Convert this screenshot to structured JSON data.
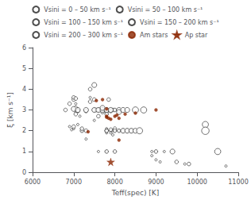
{
  "chart_data": {
    "type": "scatter",
    "xlabel": "Teff(spec) [K]",
    "ylabel": "ξ [km s⁻¹]",
    "xlim": [
      6000,
      11000
    ],
    "ylim": [
      0.0,
      6.0
    ],
    "xticks": [
      6000,
      7000,
      8000,
      9000,
      10000,
      11000
    ],
    "yticks": [
      0,
      1,
      2,
      3,
      4,
      5,
      6
    ],
    "grid": false,
    "legend": "top",
    "series": [
      {
        "name": "Vsini = 0 – 50 km s⁻¹",
        "marker": "open circle",
        "color": "#222222",
        "x": [
          6900,
          6950,
          7050,
          7050,
          7150,
          7000,
          7100,
          7200,
          7300,
          7400,
          7500,
          7600,
          7700,
          7800,
          7800,
          7800,
          7800,
          7800,
          7900,
          7900,
          7900,
          7950,
          7950,
          8000,
          8000,
          8000,
          8000,
          8100,
          8100,
          8900,
          8900,
          9000,
          9000,
          9100,
          9200,
          9700,
          10700
        ],
        "values": [
          2.2,
          2.05,
          2.9,
          3.3,
          2.7,
          2.1,
          2.3,
          2.0,
          1.6,
          3.6,
          2.5,
          1.0,
          3.0,
          2.0,
          2.0,
          1.9,
          2.1,
          1.0,
          2.0,
          2.0,
          1.9,
          2.0,
          1.8,
          3.0,
          2.0,
          2.0,
          1.0,
          2.0,
          2.0,
          1.0,
          0.8,
          1.0,
          0.6,
          0.5,
          1.0,
          0.4,
          0.3
        ]
      },
      {
        "name": "Vsini = 50 – 100 km s⁻¹",
        "marker": "open circle",
        "color": "#222222",
        "x": [
          6800,
          6900,
          7000,
          7000,
          7050,
          7100,
          7100,
          7050,
          7050,
          7000,
          7200,
          7200,
          7300,
          7300,
          7400,
          7400,
          7500,
          7500,
          7550,
          7600,
          7600,
          7700,
          7700,
          7800,
          7800,
          7800,
          7800,
          7800,
          7800,
          7850,
          7900,
          7900,
          7950,
          8000,
          8000,
          8000,
          8000,
          8100,
          8200,
          8300,
          8400,
          9000,
          9500,
          9800
        ],
        "values": [
          3.0,
          3.3,
          3.5,
          3.6,
          3.55,
          3.0,
          2.95,
          2.8,
          3.1,
          2.2,
          2.0,
          2.1,
          2.0,
          2.95,
          4.0,
          3.4,
          3.5,
          3.0,
          3.0,
          3.0,
          2.7,
          3.0,
          2.9,
          3.0,
          2.9,
          2.8,
          2.0,
          2.0,
          1.0,
          3.5,
          2.95,
          2.05,
          3.0,
          3.0,
          2.1,
          2.0,
          1.0,
          2.0,
          2.0,
          2.0,
          2.0,
          1.0,
          0.5,
          0.4
        ]
      },
      {
        "name": "Vsini = 100 – 150 km s⁻¹",
        "marker": "open circle",
        "color": "#222222",
        "x": [
          7000,
          7100,
          7300,
          7500,
          7500,
          7600,
          7700,
          7700,
          7800,
          7900,
          8100,
          8100,
          8200,
          8200,
          8300,
          8300,
          8400,
          8500,
          9400
        ],
        "values": [
          3.05,
          3.0,
          3.0,
          4.2,
          3.0,
          3.0,
          3.0,
          3.1,
          3.0,
          3.0,
          3.0,
          2.9,
          3.0,
          2.0,
          3.0,
          2.0,
          2.0,
          2.0,
          1.0
        ]
      },
      {
        "name": "Vsini = 150 – 200 km s⁻¹",
        "marker": "open circle",
        "color": "#222222",
        "x": [
          8500,
          8600,
          8700,
          10200,
          10500
        ],
        "values": [
          3.0,
          2.0,
          3.0,
          2.3,
          1.0
        ]
      },
      {
        "name": "Vsini = 200 – 300 km s⁻¹",
        "marker": "open circle",
        "color": "#222222",
        "x": [
          10200
        ],
        "values": [
          2.0
        ]
      },
      {
        "name": "Am stars",
        "marker": "circle",
        "color": "#8B2500",
        "x": [
          7350,
          7550,
          7700,
          7800,
          7800,
          7800,
          7850,
          7900,
          8000,
          8050,
          8100,
          8100,
          8250,
          8500,
          9000
        ],
        "values": [
          1.95,
          3.45,
          3.5,
          3.05,
          2.7,
          2.65,
          2.6,
          2.55,
          2.7,
          2.75,
          2.6,
          1.55,
          2.8,
          2.85,
          3.0
        ]
      },
      {
        "name": "Ap star",
        "marker": "star",
        "color": "#8B2500",
        "x": [
          7900
        ],
        "values": [
          0.5
        ]
      }
    ]
  }
}
